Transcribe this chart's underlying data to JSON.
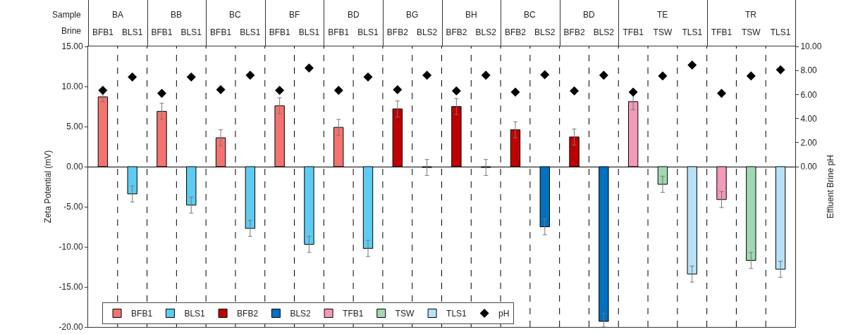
{
  "chart_data": {
    "type": "bar",
    "categories": [
      "BFB1",
      "BLS1",
      "BFB1",
      "BLS1",
      "BFB1",
      "BLS1",
      "BFB1",
      "BLS1",
      "BFB1",
      "BLS1",
      "BFB2",
      "BLS2",
      "BFB2",
      "BLS2",
      "BFB2",
      "BLS2",
      "BFB2",
      "BLS2",
      "TFB1",
      "TSW",
      "TLS1",
      "TFB1",
      "TSW",
      "TLS1"
    ],
    "series": [
      {
        "name": "BFB1",
        "color": "#f4736f",
        "values": [
          8.7,
          null,
          6.9,
          null,
          3.6,
          null,
          7.6,
          null,
          4.9,
          null,
          null,
          null,
          null,
          null,
          null,
          null,
          null,
          null,
          null,
          null,
          null,
          null,
          null,
          null
        ],
        "errors": [
          0.6,
          null,
          1,
          null,
          1,
          null,
          1,
          null,
          1,
          null,
          null,
          null,
          null,
          null,
          null,
          null,
          null,
          null,
          null,
          null,
          null,
          null,
          null,
          null
        ]
      },
      {
        "name": "BLS1",
        "color": "#5ecbf2",
        "values": [
          null,
          -3.4,
          null,
          -4.8,
          null,
          -7.7,
          null,
          -9.7,
          null,
          -10.2,
          null,
          null,
          null,
          null,
          null,
          null,
          null,
          null,
          null,
          null,
          null,
          null,
          null,
          null
        ],
        "errors": [
          null,
          1,
          null,
          1,
          null,
          1,
          null,
          1,
          null,
          1,
          null,
          null,
          null,
          null,
          null,
          null,
          null,
          null,
          null,
          null,
          null,
          null,
          null,
          null
        ]
      },
      {
        "name": "BFB2",
        "color": "#c00000",
        "values": [
          null,
          null,
          null,
          null,
          null,
          null,
          null,
          null,
          null,
          null,
          7.2,
          null,
          7.5,
          null,
          4.6,
          null,
          3.7,
          null,
          null,
          null,
          null,
          null,
          null,
          null
        ],
        "errors": [
          null,
          null,
          null,
          null,
          null,
          null,
          null,
          null,
          null,
          null,
          1,
          null,
          1,
          null,
          1,
          null,
          1,
          null,
          null,
          null,
          null,
          null,
          null,
          null
        ]
      },
      {
        "name": "BLS2",
        "color": "#0070c0",
        "values": [
          null,
          null,
          null,
          null,
          null,
          null,
          null,
          null,
          null,
          null,
          null,
          -0.1,
          null,
          -0.1,
          null,
          -7.5,
          null,
          -19.3,
          null,
          null,
          null,
          null,
          null,
          null
        ],
        "errors": [
          null,
          null,
          null,
          null,
          null,
          null,
          null,
          null,
          null,
          null,
          null,
          1,
          null,
          1,
          null,
          1,
          null,
          [
            -20,
            -18.3
          ],
          null,
          null,
          null,
          null,
          null,
          null
        ]
      },
      {
        "name": "TFB1",
        "color": "#f29ab8",
        "values": [
          null,
          null,
          null,
          null,
          null,
          null,
          null,
          null,
          null,
          null,
          null,
          null,
          null,
          null,
          null,
          null,
          null,
          null,
          8.1,
          null,
          null,
          -4.1,
          null,
          null
        ],
        "errors": [
          null,
          null,
          null,
          null,
          null,
          null,
          null,
          null,
          null,
          null,
          null,
          null,
          null,
          null,
          null,
          null,
          null,
          null,
          1,
          null,
          null,
          1,
          null,
          null
        ]
      },
      {
        "name": "TSW",
        "color": "#9fd8b2",
        "values": [
          null,
          null,
          null,
          null,
          null,
          null,
          null,
          null,
          null,
          null,
          null,
          null,
          null,
          null,
          null,
          null,
          null,
          null,
          null,
          -2.2,
          null,
          null,
          -11.7,
          null
        ],
        "errors": [
          null,
          null,
          null,
          null,
          null,
          null,
          null,
          null,
          null,
          null,
          null,
          null,
          null,
          null,
          null,
          null,
          null,
          null,
          null,
          1,
          null,
          null,
          1,
          null
        ]
      },
      {
        "name": "TLS1",
        "color": "#b7e1f7",
        "values": [
          null,
          null,
          null,
          null,
          null,
          null,
          null,
          null,
          null,
          null,
          null,
          null,
          null,
          null,
          null,
          null,
          null,
          null,
          null,
          null,
          -13.4,
          null,
          null,
          -12.8
        ],
        "errors": [
          null,
          null,
          null,
          null,
          null,
          null,
          null,
          null,
          null,
          null,
          null,
          null,
          null,
          null,
          null,
          null,
          null,
          null,
          null,
          null,
          1,
          null,
          null,
          1
        ]
      },
      {
        "name": "pH",
        "type": "scatter",
        "axis": "y2",
        "marker": "diamond",
        "color": "#000000",
        "values": [
          6.35,
          7.45,
          6.1,
          7.45,
          6.4,
          7.6,
          6.35,
          8.2,
          6.35,
          7.45,
          6.4,
          7.6,
          6.3,
          7.6,
          6.2,
          7.65,
          6.3,
          7.6,
          6.2,
          7.55,
          8.45,
          6.1,
          7.55,
          8.05
        ]
      }
    ],
    "ylabel": "Zeta Potential (mV)",
    "y2label": "Effluent Brine pH",
    "ylim": [
      -20,
      15
    ],
    "yticks": [
      {
        "value": -20,
        "label": "-20.00"
      },
      {
        "value": -15,
        "label": "-15.00"
      },
      {
        "value": -10,
        "label": "-10.00"
      },
      {
        "value": -5,
        "label": "-5.00"
      },
      {
        "value": 0,
        "label": "0.00"
      },
      {
        "value": 5,
        "label": "5.00"
      },
      {
        "value": 10,
        "label": "10.00"
      },
      {
        "value": 15,
        "label": "15.00"
      }
    ],
    "y2lim": [
      -13.33,
      10
    ],
    "y2ticks": [
      {
        "value": 0,
        "label": "0.00"
      },
      {
        "value": 2,
        "label": "2.00"
      },
      {
        "value": 4,
        "label": "4.00"
      },
      {
        "value": 6,
        "label": "6.00"
      },
      {
        "value": 8,
        "label": "8.00"
      },
      {
        "value": 10,
        "label": "10.00"
      }
    ],
    "annotations": [
      "Sample",
      "Brine",
      "BA",
      "BB",
      "BC",
      "BF",
      "BD",
      "BG",
      "BH",
      "BC",
      "BD",
      "TE",
      "TR"
    ],
    "grid": "x",
    "legend": "bottom left"
  }
}
